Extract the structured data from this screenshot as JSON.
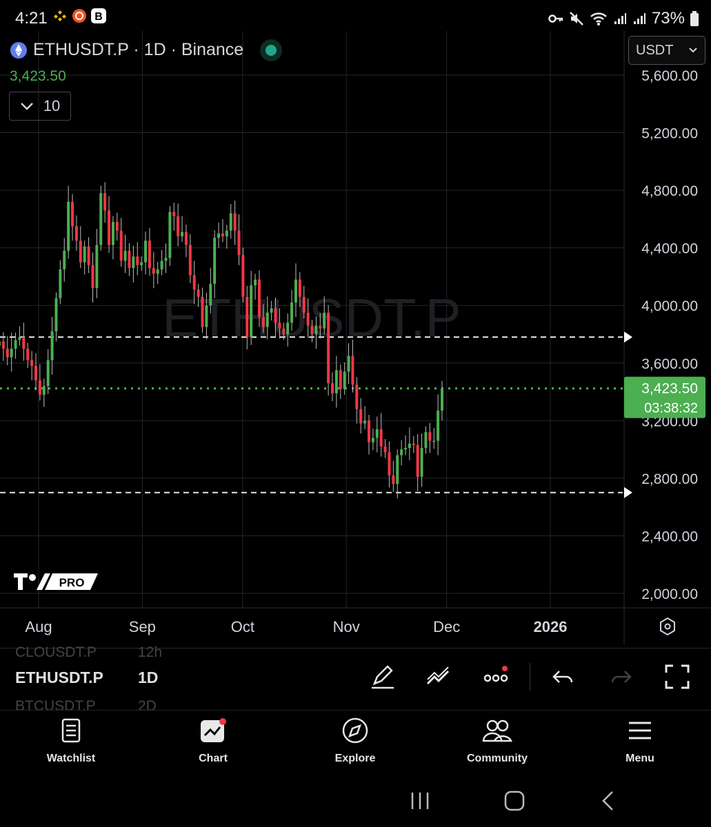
{
  "status_bar": {
    "time": "4:21",
    "battery": "73%",
    "icons_left": [
      "binance-app-icon",
      "coin-app-icon",
      "b-app-icon"
    ],
    "icons_right": [
      "key-icon",
      "mute-icon",
      "wifi-icon",
      "signal-icon",
      "signal-icon",
      "battery-icon"
    ]
  },
  "header": {
    "symbol_line": "ETHUSDT.P · 1D · Binance",
    "current_price": "3,423.50",
    "collapse_count": "10",
    "currency": "USDT"
  },
  "watermark": "ETHUSDT.P",
  "colors": {
    "up": "#4caf50",
    "down": "#f23645",
    "price_label_bg": "#4caf50",
    "grid": "#24272f"
  },
  "chart_data": {
    "type": "candlestick",
    "symbol": "ETHUSDT.P",
    "interval": "1D",
    "exchange": "Binance",
    "y_ticks": [
      "2,000.00",
      "2,400.00",
      "2,800.00",
      "3,200.00",
      "3,600.00",
      "4,000.00",
      "4,400.00",
      "4,800.00",
      "5,200.00",
      "5,600.00"
    ],
    "y_tick_values": [
      2000,
      2400,
      2800,
      3200,
      3600,
      4000,
      4400,
      4800,
      5200,
      5600
    ],
    "x_ticks": [
      "Aug",
      "Sep",
      "Oct",
      "Nov",
      "Dec",
      "2026"
    ],
    "x_tick_days": [
      31,
      62,
      92,
      123,
      153,
      184
    ],
    "ylim": [
      1900,
      5700
    ],
    "current_price": 3423.5,
    "current_price_label": "3,423.50",
    "countdown": "03:38:32",
    "horizontal_lines": [
      3780,
      2700
    ],
    "grid": true,
    "closes": [
      3750,
      3700,
      3640,
      3700,
      3760,
      3780,
      3700,
      3620,
      3580,
      3480,
      3380,
      3440,
      3620,
      3820,
      4050,
      4250,
      4380,
      4720,
      4550,
      4450,
      4300,
      4410,
      4280,
      4120,
      4420,
      4780,
      4660,
      4420,
      4580,
      4520,
      4310,
      4380,
      4260,
      4340,
      4280,
      4300,
      4450,
      4260,
      4220,
      4250,
      4310,
      4330,
      4650,
      4620,
      4480,
      4510,
      4420,
      4210,
      4110,
      4060,
      3850,
      4000,
      4150,
      4470,
      4500,
      4480,
      4520,
      4640,
      4520,
      4350,
      4060,
      3780,
      4140,
      4180,
      3920,
      3850,
      3950,
      3980,
      3880,
      3840,
      3800,
      3880,
      4020,
      4180,
      4060,
      3950,
      3860,
      3800,
      3860,
      3840,
      3950,
      3460,
      3390,
      3550,
      3420,
      3540,
      3650,
      3450,
      3280,
      3180,
      3200,
      3050,
      3080,
      3140,
      3020,
      2980,
      2820,
      2760,
      2960,
      3000,
      3010,
      3040,
      3030,
      2810,
      3010,
      3120,
      3060,
      3060,
      3270,
      3423
    ]
  },
  "toolbar": {
    "list_prev": "CLOUSDT.P",
    "list_prev_interval": "12h",
    "symbol": "ETHUSDT.P",
    "interval": "1D",
    "list_next": "BTCUSDT.P",
    "list_next_interval": "2D",
    "tools": [
      "pencil-icon",
      "trend-line-icon",
      "more-icon",
      "undo-icon",
      "redo-icon",
      "fullscreen-icon"
    ]
  },
  "logo_text": "PRO",
  "nav": {
    "items": [
      {
        "label": "Watchlist",
        "icon": "watchlist-icon"
      },
      {
        "label": "Chart",
        "icon": "chart-icon"
      },
      {
        "label": "Explore",
        "icon": "compass-icon"
      },
      {
        "label": "Community",
        "icon": "community-icon"
      },
      {
        "label": "Menu",
        "icon": "menu-icon"
      }
    ]
  }
}
